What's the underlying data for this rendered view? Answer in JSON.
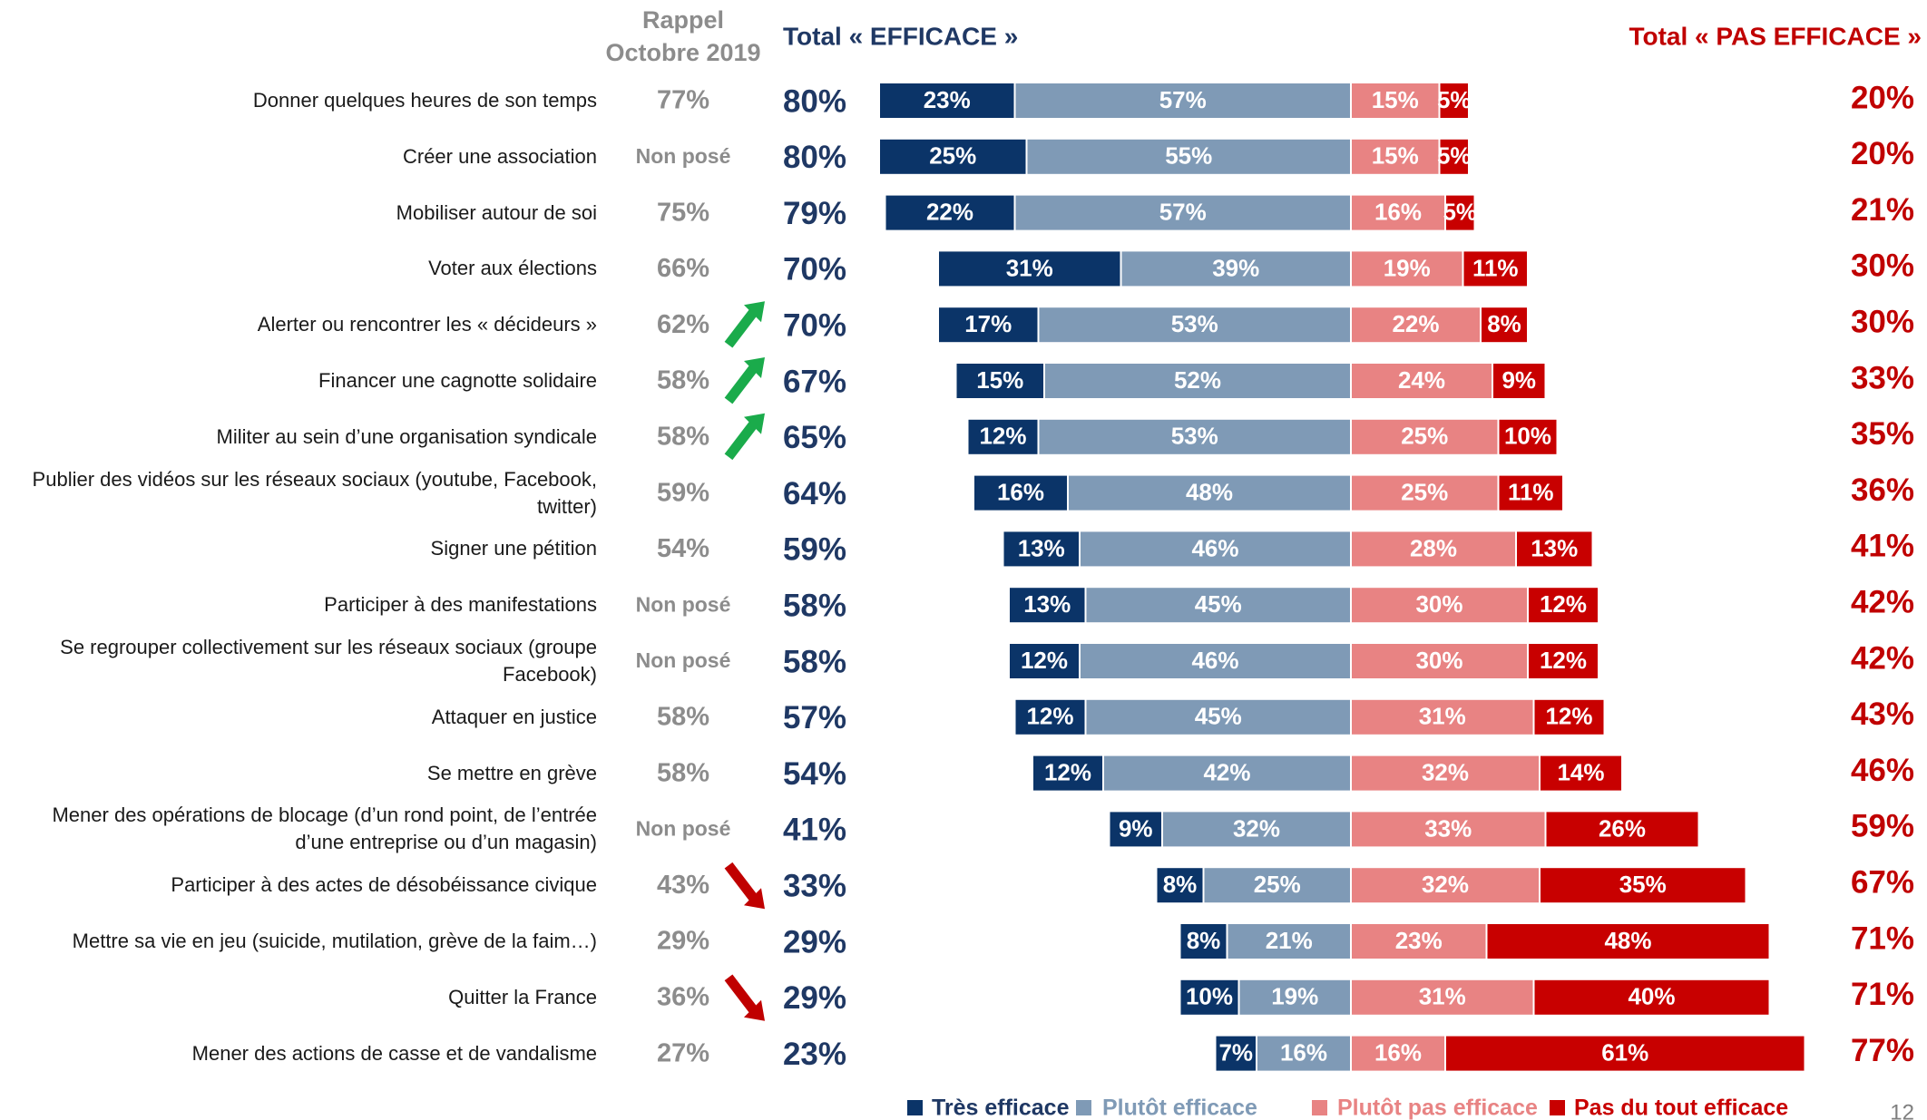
{
  "chart_data": {
    "type": "diverging_bar",
    "rappel_header": "Rappel Octobre 2019",
    "total_efficace_header": "Total « EFFICACE »",
    "total_pas_efficace_header": "Total  « PAS EFFICACE »",
    "categories": [
      "Donner quelques heures de son temps",
      "Créer une association",
      "Mobiliser autour de soi",
      "Voter aux élections",
      "Alerter ou rencontrer les « décideurs »",
      "Financer une cagnotte solidaire",
      "Militer au sein d’une organisation syndicale",
      "Publier des vidéos sur les réseaux sociaux (youtube, Facebook, twitter)",
      "Signer une pétition",
      "Participer à des manifestations",
      "Se regrouper collectivement sur les réseaux sociaux (groupe Facebook)",
      "Attaquer en justice",
      "Se mettre en grève",
      "Mener des opérations de blocage (d’un rond point, de l’entrée d’une entreprise ou d’un magasin)",
      "Participer à des actes de désobéissance civique",
      "Mettre sa vie en jeu (suicide, mutilation, grève de la faim…)",
      "Quitter la France",
      "Mener des actions de casse et de vandalisme"
    ],
    "rappel": {
      "values": [
        77,
        null,
        75,
        66,
        62,
        58,
        58,
        59,
        54,
        null,
        null,
        58,
        58,
        null,
        43,
        29,
        36,
        27
      ],
      "value_labels": [
        "77%",
        "Non posé",
        "75%",
        "66%",
        "62%",
        "58%",
        "58%",
        "59%",
        "54%",
        "Non posé",
        "Non posé",
        "58%",
        "58%",
        "Non posé",
        "43%",
        "29%",
        "36%",
        "27%"
      ],
      "color": "#8c8c8c"
    },
    "total_efficace": {
      "values": [
        80,
        80,
        79,
        70,
        70,
        67,
        65,
        64,
        59,
        58,
        58,
        57,
        54,
        41,
        33,
        29,
        29,
        23
      ],
      "value_labels": [
        "80%",
        "80%",
        "79%",
        "70%",
        "70%",
        "67%",
        "65%",
        "64%",
        "59%",
        "58%",
        "58%",
        "57%",
        "54%",
        "41%",
        "33%",
        "29%",
        "29%",
        "23%"
      ],
      "color": "#1f3864"
    },
    "total_pas_efficace": {
      "values": [
        20,
        20,
        21,
        30,
        30,
        33,
        35,
        36,
        41,
        42,
        42,
        43,
        46,
        59,
        67,
        71,
        71,
        77
      ],
      "value_labels": [
        "20%",
        "20%",
        "21%",
        "30%",
        "30%",
        "33%",
        "35%",
        "36%",
        "41%",
        "42%",
        "42%",
        "43%",
        "46%",
        "59%",
        "67%",
        "71%",
        "71%",
        "77%"
      ],
      "color": "#c00000"
    },
    "series": [
      {
        "name": "Très efficace",
        "color": "#0b3468",
        "values": [
          23,
          25,
          22,
          31,
          17,
          15,
          12,
          16,
          13,
          13,
          12,
          12,
          12,
          9,
          8,
          8,
          10,
          7
        ],
        "value_labels": [
          "23%",
          "25%",
          "22%",
          "31%",
          "17%",
          "15%",
          "12%",
          "16%",
          "13%",
          "13%",
          "12%",
          "12%",
          "12%",
          "9%",
          "8%",
          "8%",
          "10%",
          "7%"
        ]
      },
      {
        "name": "Plutôt efficace",
        "color": "#7f9ab6",
        "values": [
          57,
          55,
          57,
          39,
          53,
          52,
          53,
          48,
          46,
          45,
          46,
          45,
          42,
          32,
          25,
          21,
          19,
          16
        ],
        "value_labels": [
          "57%",
          "55%",
          "57%",
          "39%",
          "53%",
          "52%",
          "53%",
          "48%",
          "46%",
          "45%",
          "46%",
          "45%",
          "42%",
          "32%",
          "25%",
          "21%",
          "19%",
          "16%"
        ]
      },
      {
        "name": "Plutôt pas efficace",
        "color": "#e88383",
        "values": [
          15,
          15,
          16,
          19,
          22,
          24,
          25,
          25,
          28,
          30,
          30,
          31,
          32,
          33,
          32,
          23,
          31,
          16
        ],
        "value_labels": [
          "15%",
          "15%",
          "16%",
          "19%",
          "22%",
          "24%",
          "25%",
          "25%",
          "28%",
          "30%",
          "30%",
          "31%",
          "32%",
          "33%",
          "32%",
          "23%",
          "31%",
          "16%"
        ]
      },
      {
        "name": "Pas du tout efficace",
        "color": "#c80000",
        "values": [
          5,
          5,
          5,
          11,
          8,
          9,
          10,
          11,
          13,
          12,
          12,
          12,
          14,
          26,
          35,
          48,
          40,
          61
        ],
        "value_labels": [
          "5%",
          "5%",
          "5%",
          "11%",
          "8%",
          "9%",
          "10%",
          "11%",
          "13%",
          "12%",
          "12%",
          "12%",
          "14%",
          "26%",
          "35%",
          "48%",
          "40%",
          "61%"
        ]
      }
    ],
    "page_number": 12
  }
}
